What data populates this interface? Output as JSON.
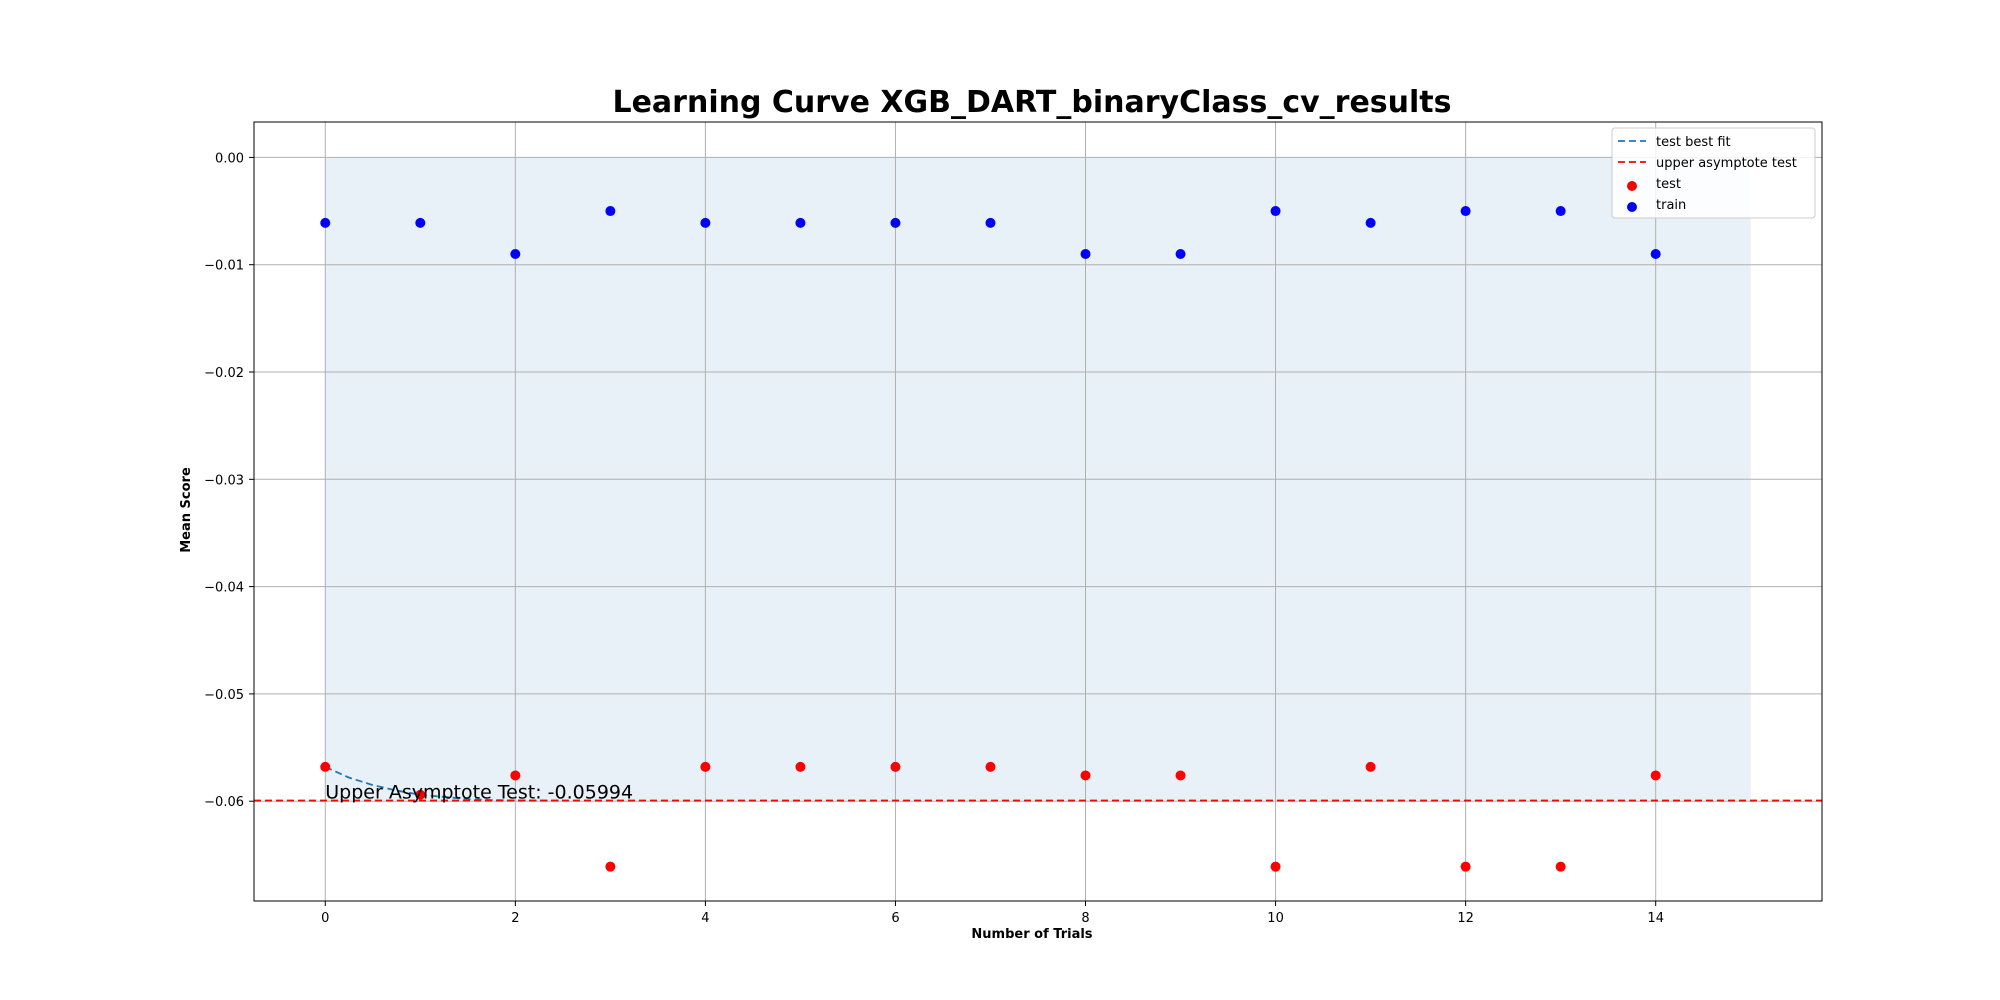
{
  "chart_data": {
    "type": "scatter",
    "title": "Learning Curve XGB_DART_binaryClass_cv_results",
    "xlabel": "Number of Trials",
    "ylabel": "Mean Score",
    "xlim": [
      -0.75,
      15.75
    ],
    "ylim": [
      -0.0693,
      0.0033
    ],
    "xticks": [
      0,
      2,
      4,
      6,
      8,
      10,
      12,
      14
    ],
    "xtick_labels": [
      "0",
      "2",
      "4",
      "6",
      "8",
      "10",
      "12",
      "14"
    ],
    "yticks": [
      0.0,
      -0.01,
      -0.02,
      -0.03,
      -0.04,
      -0.05,
      -0.06
    ],
    "ytick_labels": [
      "0.00",
      "−0.01",
      "−0.02",
      "−0.03",
      "−0.04",
      "−0.05",
      "−0.06"
    ],
    "grid": true,
    "legend_position": "top-right",
    "shaded_band": {
      "x": [
        0,
        15
      ],
      "y": [
        -0.05994,
        0.0
      ],
      "color": "#e8f0f8"
    },
    "series": [
      {
        "name": "test best fit",
        "kind": "line",
        "style": "dashed",
        "color": "#1f77b4",
        "x": [
          0,
          0.25,
          0.5,
          0.75,
          1.0,
          1.25,
          1.5,
          1.75,
          2.0,
          2.25,
          2.5
        ],
        "y": [
          -0.0568,
          -0.0578,
          -0.0585,
          -0.059,
          -0.0594,
          -0.0596,
          -0.0598,
          -0.0599,
          -0.05993,
          -0.05994,
          -0.05994
        ]
      },
      {
        "name": "upper asymptote test",
        "kind": "hline",
        "style": "dashed",
        "color": "#ff0000",
        "y": -0.05994
      },
      {
        "name": "test",
        "kind": "scatter",
        "color": "#ff0000",
        "x": [
          0,
          1,
          2,
          3,
          4,
          5,
          6,
          7,
          8,
          9,
          10,
          11,
          12,
          13,
          14
        ],
        "y": [
          -0.0568,
          -0.0594,
          -0.0576,
          -0.0661,
          -0.0568,
          -0.0568,
          -0.0568,
          -0.0568,
          -0.0576,
          -0.0576,
          -0.0661,
          -0.0568,
          -0.0661,
          -0.0661,
          -0.0576
        ]
      },
      {
        "name": "train",
        "kind": "scatter",
        "color": "#0000ff",
        "x": [
          0,
          1,
          2,
          3,
          4,
          5,
          6,
          7,
          8,
          9,
          10,
          11,
          12,
          13,
          14
        ],
        "y": [
          -0.0061,
          -0.0061,
          -0.009,
          -0.005,
          -0.0061,
          -0.0061,
          -0.0061,
          -0.0061,
          -0.009,
          -0.009,
          -0.005,
          -0.0061,
          -0.005,
          -0.005,
          -0.009
        ]
      }
    ],
    "annotations": [
      {
        "text": "Upper Asymptote Test: -0.05994",
        "x": 0,
        "y": -0.05994
      }
    ]
  }
}
